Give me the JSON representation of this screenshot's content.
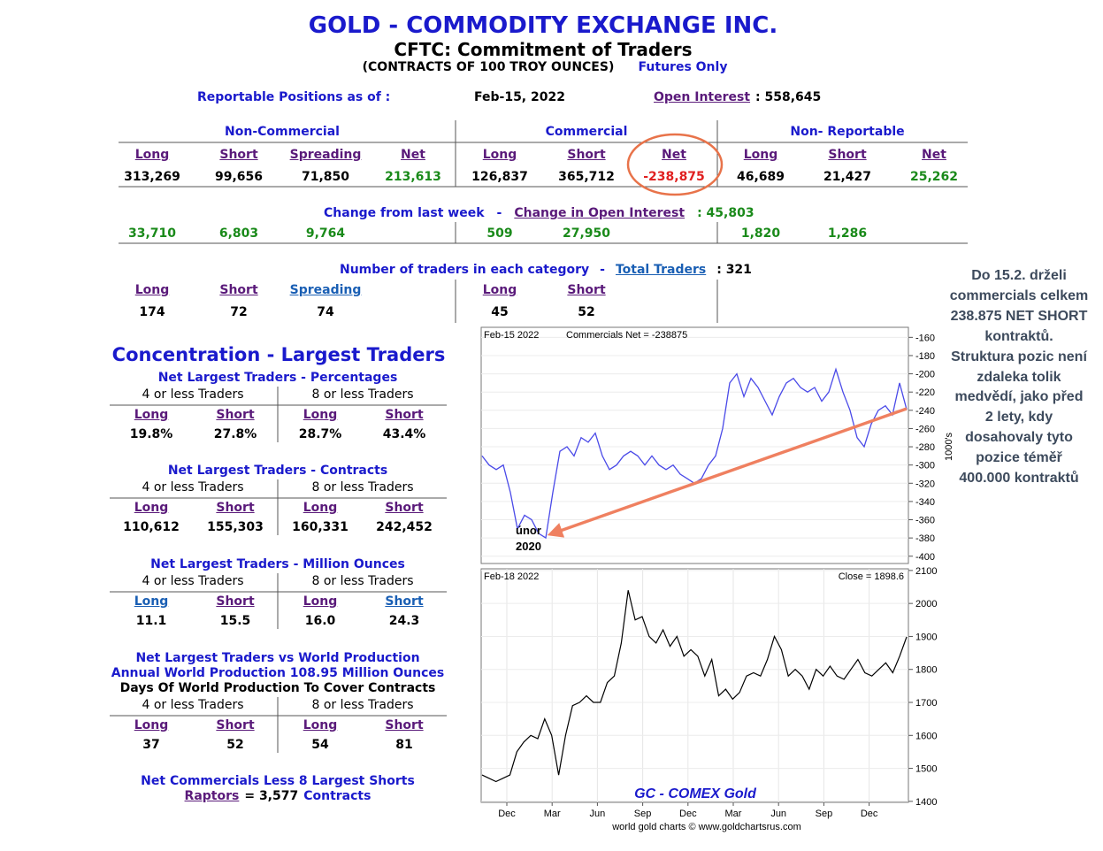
{
  "header": {
    "title": "GOLD - COMMODITY EXCHANGE INC.",
    "subtitle": "CFTC: Commitment of Traders",
    "note": "(CONTRACTS OF 100 TROY OUNCES)",
    "futures": "Futures Only"
  },
  "reportable": {
    "label": "Reportable Positions as of :",
    "date": "Feb-15, 2022",
    "open_interest_label": "Open Interest",
    "open_interest": ": 558,645"
  },
  "positions": {
    "groups": [
      "Non-Commercial",
      "Commercial",
      "Non- Reportable"
    ],
    "headers": [
      "Long",
      "Short",
      "Spreading",
      "Net",
      "Long",
      "Short",
      "Net",
      "Long",
      "Short",
      "Net"
    ],
    "values": [
      "313,269",
      "99,656",
      "71,850",
      "213,613",
      "126,837",
      "365,712",
      "-238,875",
      "46,689",
      "21,427",
      "25,262"
    ]
  },
  "change": {
    "title": "Change from last week",
    "dash": "-",
    "oi_label": "Change in Open Interest",
    "oi_value": ": 45,803",
    "values": [
      "33,710",
      "6,803",
      "9,764",
      null,
      "509",
      "27,950",
      null,
      "1,820",
      "1,286",
      null
    ]
  },
  "traders": {
    "title": "Number of traders in each category",
    "dash": "-",
    "total_label": "Total Traders",
    "total_value": ": 321",
    "headers": [
      "Long",
      "Short",
      "Spreading",
      "Long",
      "Short"
    ],
    "values": [
      "174",
      "72",
      "74",
      "45",
      "52"
    ]
  },
  "concentration": {
    "title": "Concentration - Largest Traders",
    "sub_headers": [
      "4 or less Traders",
      "8 or less Traders"
    ],
    "col_headers": [
      "Long",
      "Short",
      "Long",
      "Short"
    ],
    "blocks": [
      {
        "titles": [
          "Net Largest Traders - Percentages"
        ],
        "values": [
          "19.8%",
          "27.8%",
          "28.7%",
          "43.4%"
        ]
      },
      {
        "titles": [
          "Net Largest Traders - Contracts"
        ],
        "values": [
          "110,612",
          "155,303",
          "160,331",
          "242,452"
        ]
      },
      {
        "titles": [
          "Net Largest Traders - Million Ounces"
        ],
        "values": [
          "11.1",
          "15.5",
          "16.0",
          "24.3"
        ]
      },
      {
        "titles": [
          "Net Largest Traders vs World Production",
          "Annual World Production 108.95 Million Ounces",
          "Days Of World Production To Cover Contracts"
        ],
        "values": [
          "37",
          "52",
          "54",
          "81"
        ]
      }
    ]
  },
  "footer": {
    "line1": "Net Commercials Less 8 Largest Shorts",
    "link": "Raptors",
    "value": "= 3,577",
    "unit": "Contracts"
  },
  "note": {
    "lines": [
      "Do 15.2. drželi",
      "commercials celkem",
      "238.875 NET SHORT",
      "kontraktů.",
      "Struktura pozic není",
      "zdaleka tolik",
      "medvědí, jako před",
      "2 lety, kdy",
      "dosahovaly tyto",
      "pozice téměř",
      "400.000 kontraktů"
    ]
  },
  "chart_data": [
    {
      "type": "line",
      "header_left": "Feb-15  2022",
      "header_right": "Commercials Net = -238875",
      "y_label": "1000's",
      "annotation": [
        "únor",
        "2020"
      ],
      "color": "#4a4ae8",
      "ylim": [
        -408,
        -149
      ],
      "yticks": [
        -160,
        -180,
        -200,
        -220,
        -240,
        -260,
        -280,
        -300,
        -320,
        -340,
        -360,
        -380,
        -400
      ],
      "values": [
        -290,
        -300,
        -305,
        -300,
        -330,
        -370,
        -355,
        -360,
        -375,
        -380,
        -330,
        -285,
        -280,
        -290,
        -270,
        -275,
        -265,
        -290,
        -305,
        -300,
        -290,
        -285,
        -290,
        -300,
        -290,
        -300,
        -305,
        -300,
        -310,
        -315,
        -320,
        -315,
        -300,
        -290,
        -260,
        -210,
        -200,
        -225,
        -205,
        -215,
        -230,
        -245,
        -225,
        -210,
        -205,
        -215,
        -220,
        -215,
        -230,
        -220,
        -195,
        -220,
        -240,
        -270,
        -280,
        -255,
        -240,
        -235,
        -245,
        -210,
        -239
      ]
    },
    {
      "type": "line",
      "header_left": "Feb-18  2022",
      "header_right": "Close = 1898.6",
      "caption": "GC - COMEX Gold",
      "credit": "world gold charts © www.goldchartsrus.com",
      "color": "#000000",
      "x_labels": [
        "Dec",
        "Mar",
        "Jun",
        "Sep",
        "Dec",
        "Mar",
        "Jun",
        "Sep",
        "Dec"
      ],
      "ylim": [
        1397,
        2105
      ],
      "yticks": [
        1400,
        1500,
        1600,
        1700,
        1800,
        1900,
        2000,
        2100
      ],
      "values": [
        1480,
        1470,
        1460,
        1470,
        1480,
        1550,
        1580,
        1600,
        1590,
        1650,
        1600,
        1480,
        1600,
        1690,
        1700,
        1720,
        1700,
        1700,
        1760,
        1780,
        1880,
        2040,
        1950,
        1960,
        1900,
        1880,
        1920,
        1870,
        1900,
        1840,
        1860,
        1840,
        1780,
        1830,
        1720,
        1740,
        1710,
        1730,
        1780,
        1790,
        1780,
        1830,
        1900,
        1860,
        1780,
        1800,
        1780,
        1740,
        1800,
        1780,
        1810,
        1780,
        1770,
        1800,
        1830,
        1790,
        1780,
        1800,
        1820,
        1790,
        1840,
        1898.6
      ]
    }
  ]
}
